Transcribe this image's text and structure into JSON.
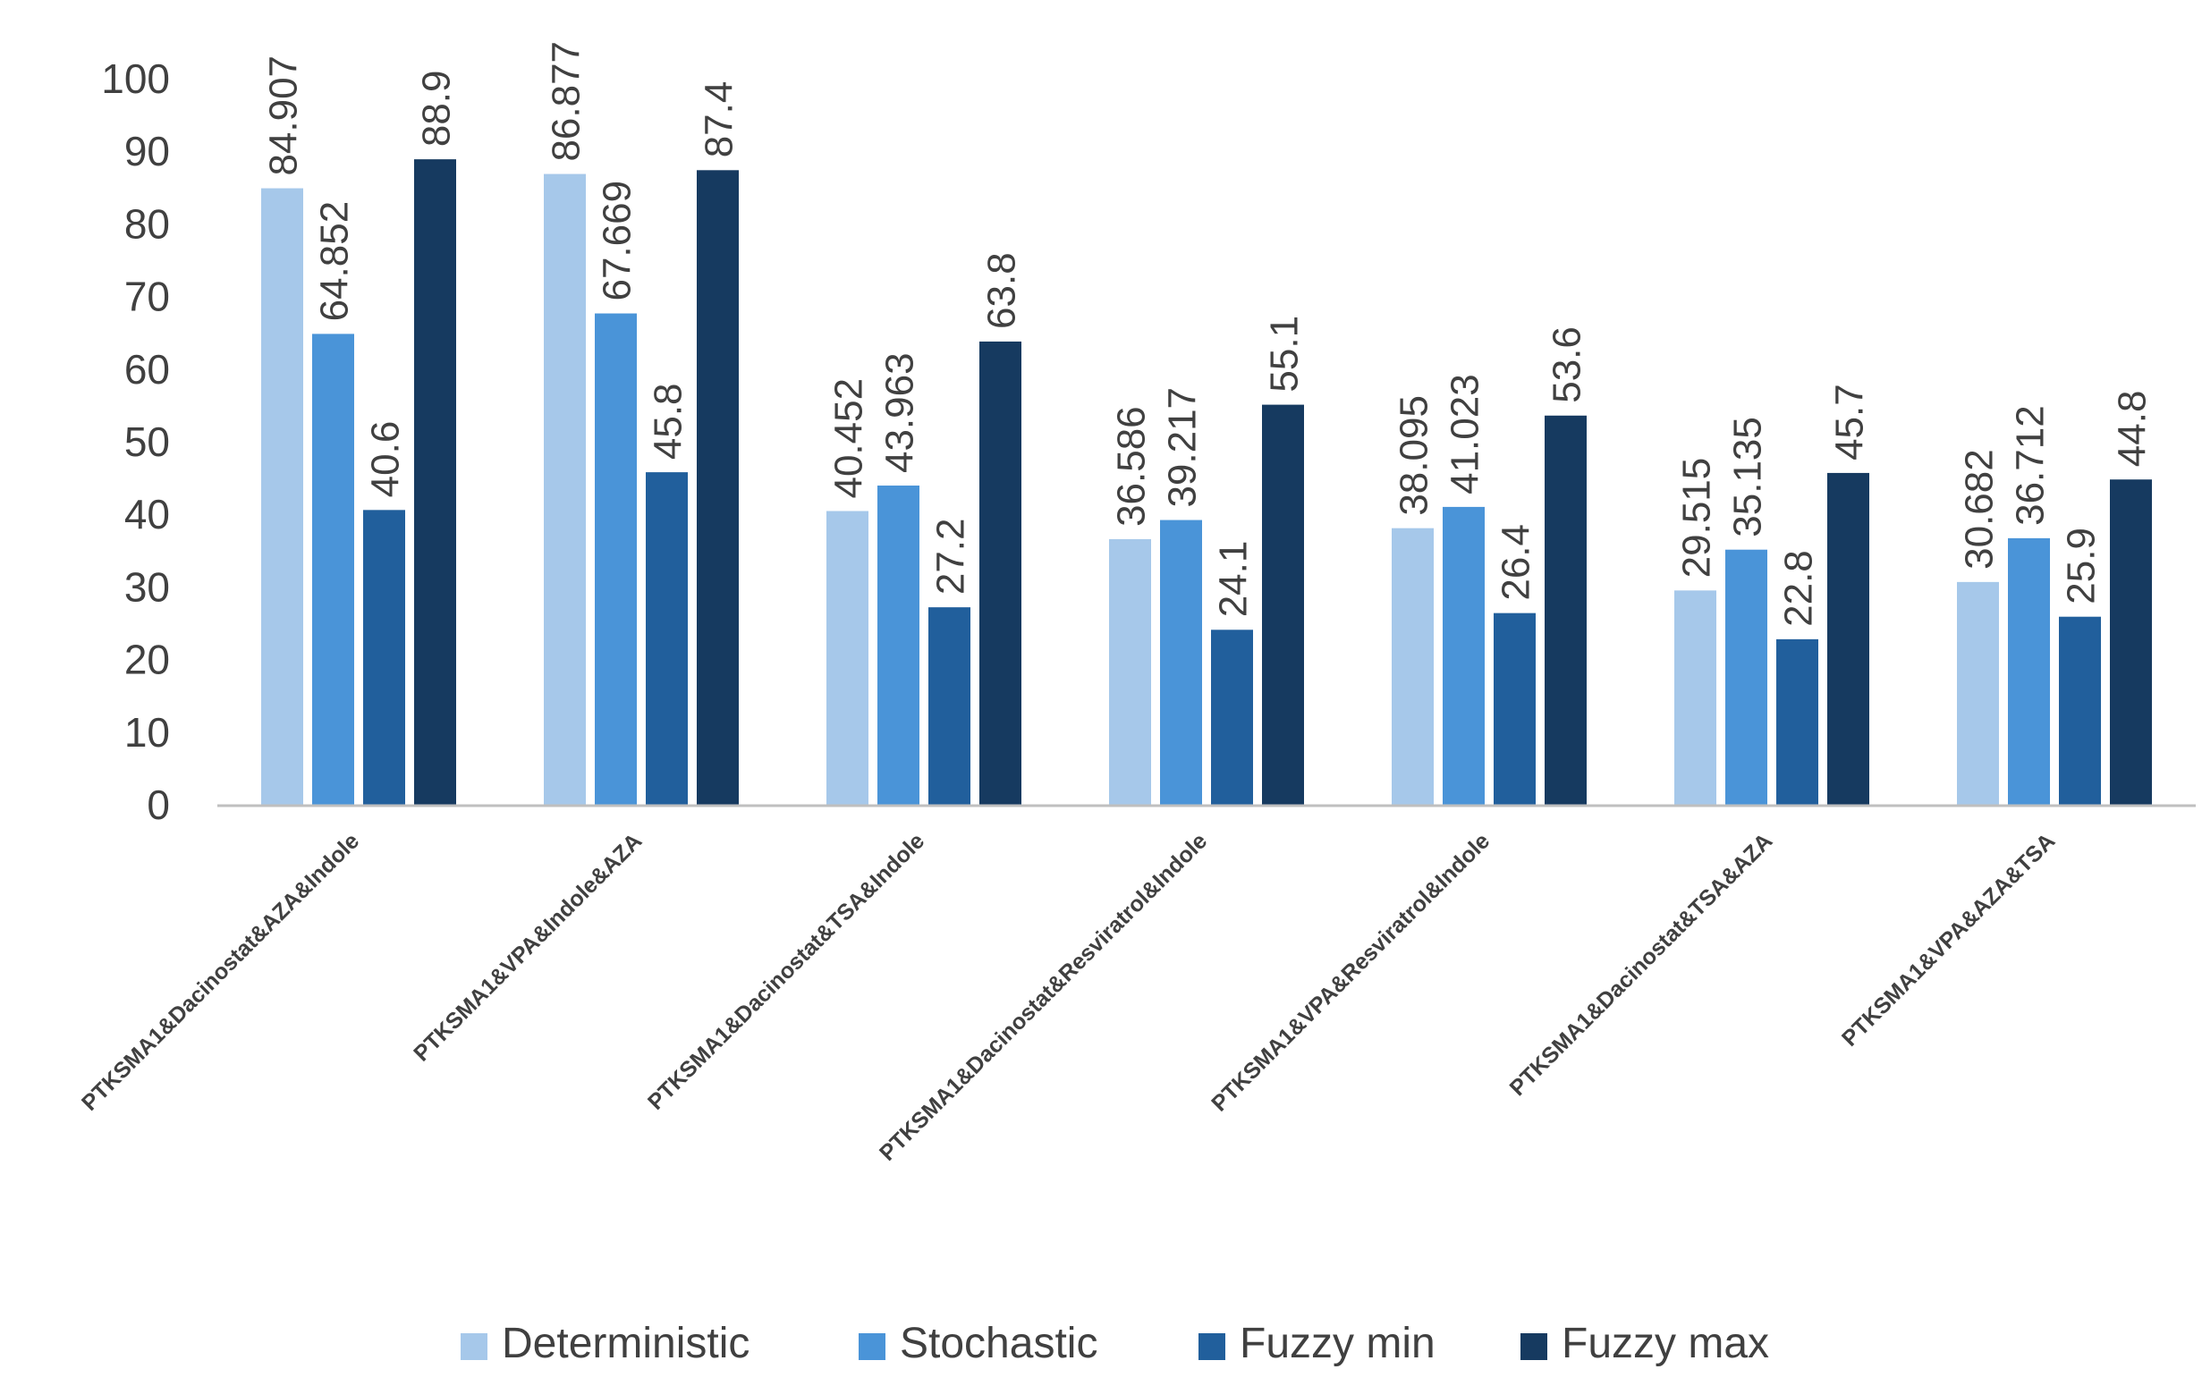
{
  "chart_data": {
    "type": "bar",
    "title": "",
    "xlabel": "",
    "ylabel": "",
    "ylim": [
      0,
      100
    ],
    "yticks": [
      0,
      10,
      20,
      30,
      40,
      50,
      60,
      70,
      80,
      90,
      100
    ],
    "grid": false,
    "legend_position": "bottom",
    "categories": [
      "PTKSMA1&Dacinostat&AZA&Indole",
      "PTKSMA1&VPA&Indole&AZA",
      "PTKSMA1&Dacinostat&TSA&Indole",
      "PTKSMA1&Dacinostat&Resviratrol&Indole",
      "PTKSMA1&VPA&Resviratrol&Indole",
      "PTKSMA1&Dacinostat&TSA&AZA",
      "PTKSMA1&VPA&AZA&TSA"
    ],
    "series": [
      {
        "name": "Deterministic",
        "color": "#a6c8ea",
        "values": [
          84.907,
          86.877,
          40.452,
          36.586,
          38.095,
          29.515,
          30.682
        ],
        "labels": [
          "84.907",
          "86.877",
          "40.452",
          "36.586",
          "38.095",
          "29.515",
          "30.682"
        ]
      },
      {
        "name": "Stochastic",
        "color": "#4a94d8",
        "values": [
          64.852,
          67.669,
          43.963,
          39.217,
          41.023,
          35.135,
          36.712
        ],
        "labels": [
          "64.852",
          "67.669",
          "43.963",
          "39.217",
          "41.023",
          "35.135",
          "36.712"
        ]
      },
      {
        "name": "Fuzzy min",
        "color": "#215f9c",
        "values": [
          40.6,
          45.8,
          27.2,
          24.1,
          26.4,
          22.8,
          25.9
        ],
        "labels": [
          "40.6",
          "45.8",
          "27.2",
          "24.1",
          "26.4",
          "22.8",
          "25.9"
        ]
      },
      {
        "name": "Fuzzy max",
        "color": "#163a60",
        "values": [
          88.9,
          87.4,
          63.8,
          55.1,
          53.6,
          45.7,
          44.8
        ],
        "labels": [
          "88.9",
          "87.4",
          "63.8",
          "55.1",
          "53.6",
          "45.7",
          "44.8"
        ]
      }
    ],
    "axis_color": "#bfbfbf"
  }
}
